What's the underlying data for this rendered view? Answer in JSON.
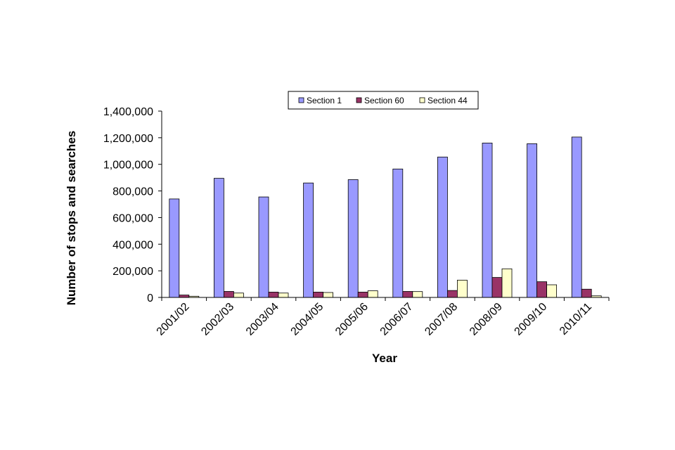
{
  "chart_data": {
    "type": "bar",
    "title": "",
    "xlabel": "Year",
    "ylabel": "Number of stops and searches",
    "ylim": [
      0,
      1400000
    ],
    "yticks": [
      0,
      200000,
      400000,
      600000,
      800000,
      1000000,
      1200000,
      1400000
    ],
    "ytick_labels": [
      "0",
      "200,000",
      "400,000",
      "600,000",
      "800,000",
      "1,000,000",
      "1,200,000",
      "1,400,000"
    ],
    "grid": false,
    "legend_position": "top",
    "categories": [
      "2001/02",
      "2002/03",
      "2003/04",
      "2004/05",
      "2005/06",
      "2006/07",
      "2007/08",
      "2008/09",
      "2009/10",
      "2010/11"
    ],
    "series": [
      {
        "name": "Section 1",
        "color": "#9999ff",
        "values": [
          740000,
          895000,
          755000,
          860000,
          885000,
          965000,
          1055000,
          1160000,
          1155000,
          1205000
        ]
      },
      {
        "name": "Section 60",
        "color": "#993366",
        "values": [
          18000,
          45000,
          40000,
          40000,
          40000,
          45000,
          52000,
          150000,
          118000,
          62000
        ]
      },
      {
        "name": "Section 44",
        "color": "#ffffcc",
        "values": [
          9000,
          33000,
          33000,
          37000,
          50000,
          44000,
          130000,
          215000,
          95000,
          12000
        ]
      }
    ]
  }
}
